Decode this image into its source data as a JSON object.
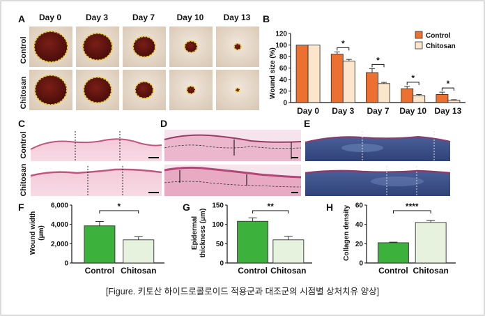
{
  "panel_labels": {
    "A": "A",
    "B": "B",
    "C": "C",
    "D": "D",
    "E": "E",
    "F": "F",
    "G": "G",
    "H": "H"
  },
  "panel_a": {
    "days": [
      "Day 0",
      "Day 3",
      "Day 7",
      "Day 10",
      "Day 13"
    ],
    "rows": [
      "Control",
      "Chitosan"
    ]
  },
  "histology": {
    "rows": [
      "Control",
      "Chitosan"
    ]
  },
  "colors": {
    "control_orange": "#ec7030",
    "chitosan_cream": "#fbe6cc",
    "control_green": "#3cb23c",
    "chitosan_pale": "#e6f2de",
    "wound_border": "#e8d23a",
    "he_pink": "#e8a5be",
    "mt_blue": "#40578e"
  },
  "caption": "[Figure. 키토산 하이드로콜로이드 적용군과 대조군의 시점별 상처치유 양상]",
  "chart_data": [
    {
      "id": "B",
      "type": "bar",
      "title": "",
      "categories": [
        "Day 0",
        "Day 3",
        "Day 7",
        "Day 10",
        "Day 13"
      ],
      "series": [
        {
          "name": "Control",
          "values": [
            100,
            84,
            52,
            24,
            14
          ],
          "errors": [
            0,
            4,
            7,
            4,
            4
          ]
        },
        {
          "name": "Chitosan",
          "values": [
            100,
            72,
            33,
            12,
            4
          ],
          "errors": [
            0,
            3,
            2,
            2,
            1
          ]
        }
      ],
      "ylabel": "Wound size (%)",
      "ylim": [
        0,
        120
      ],
      "yticks": [
        "0",
        "20",
        "40",
        "60",
        "80",
        "100",
        "120"
      ],
      "significance": [
        "*",
        "*",
        "*",
        "*"
      ],
      "legend": "top-right"
    },
    {
      "id": "F",
      "type": "bar",
      "categories": [
        "Control",
        "Chitosan"
      ],
      "values": [
        3850,
        2400
      ],
      "errors": [
        450,
        320
      ],
      "ylabel": "Wound width (μm)",
      "ylim": [
        0,
        6000
      ],
      "yticks": [
        "0",
        "2,000",
        "4,000",
        "6,000"
      ],
      "significance": "*"
    },
    {
      "id": "G",
      "type": "bar",
      "categories": [
        "Control",
        "Chitosan"
      ],
      "values": [
        108,
        60
      ],
      "errors": [
        9,
        9
      ],
      "ylabel": "Epidermal thickness (μm)",
      "ylim": [
        0,
        150
      ],
      "yticks": [
        "0",
        "50",
        "100",
        "150"
      ],
      "significance": "**"
    },
    {
      "id": "H",
      "type": "bar",
      "categories": [
        "Control",
        "Chitosan"
      ],
      "values": [
        21,
        42
      ],
      "errors": [
        0.6,
        2
      ],
      "ylabel": "Collagen density",
      "ylim": [
        0,
        60
      ],
      "yticks": [
        "0",
        "20",
        "40",
        "60"
      ],
      "significance": "****"
    }
  ]
}
